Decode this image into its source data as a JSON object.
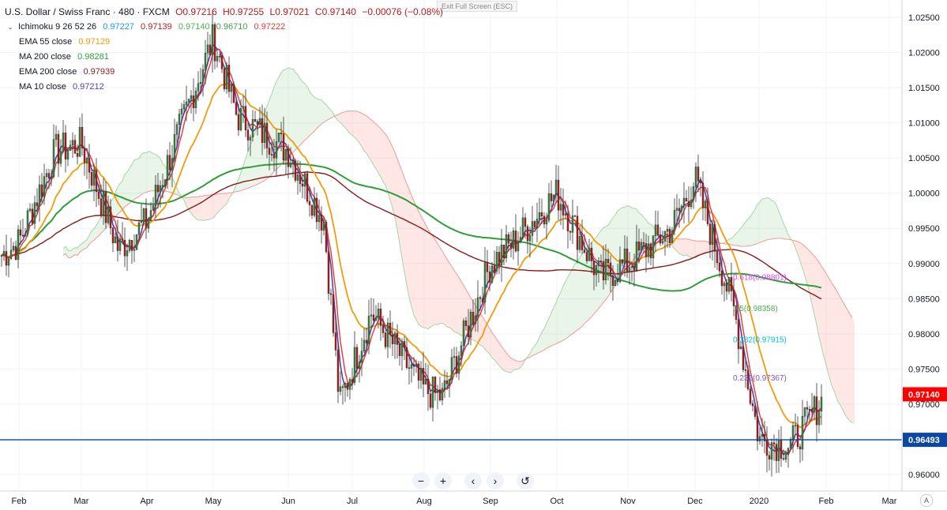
{
  "exit_fullscreen": "Exit Full Screen (ESC)",
  "legend": {
    "title": "U.S. Dollar / Swiss Franc · 480 · FXCM",
    "open": "O0.97216",
    "high": "H0.97255",
    "low": "L0.97021",
    "close": "C0.97140",
    "change": "−0.00076 (−0.08%)",
    "ichimoku": {
      "label": "Ichimoku 9 26 52 26",
      "values": [
        "0.97227",
        "0.97139",
        "0.97140",
        "0.96710",
        "0.97222"
      ],
      "colors": [
        "#2196f3",
        "#b71c1c",
        "#4caf50",
        "#43a047",
        "#e53935"
      ]
    },
    "ema55": {
      "label": "EMA 55 close",
      "value": "0.97129",
      "color": "#f59a0b"
    },
    "ma200": {
      "label": "MA 200 close",
      "value": "0.98281",
      "color": "#2e9e3a"
    },
    "ema200": {
      "label": "EMA 200 close",
      "value": "0.97939",
      "color": "#8b1a1a"
    },
    "ma10": {
      "label": "MA 10 close",
      "value": "0.97212",
      "color": "#5b3fa8"
    }
  },
  "price_axis": {
    "labels": [
      "1.02500",
      "1.02000",
      "1.01500",
      "1.01000",
      "1.00500",
      "1.00000",
      "0.99500",
      "0.99000",
      "0.98500",
      "0.98000",
      "0.97500",
      "0.97000",
      "0.96500",
      "0.96000"
    ],
    "current_price": "0.97140",
    "current_color": "#ff0000",
    "hline_price": "0.96493",
    "hline_color": "#0d47a1"
  },
  "time_axis": {
    "labels": [
      "Feb",
      "Mar",
      "Apr",
      "May",
      "Jun",
      "Jul",
      "Aug",
      "Sep",
      "Oct",
      "Nov",
      "Dec",
      "2020",
      "Feb",
      "Mar"
    ]
  },
  "fib": [
    {
      "label": "0.618(0.98801)",
      "price": 0.98801,
      "color": "#e040fb"
    },
    {
      "label": "0.5(0.98358)",
      "price": 0.98358,
      "color": "#4caf50"
    },
    {
      "label": "0.382(0.97915)",
      "price": 0.97915,
      "color": "#00bcd4"
    },
    {
      "label": "0.236(0.97367)",
      "price": 0.97367,
      "color": "#7e57c2"
    }
  ],
  "nav": {
    "zoom_out": "−",
    "zoom_in": "+",
    "prev": "‹",
    "next": "›",
    "reset": "↺"
  },
  "auto_label": "A",
  "chart_data": {
    "type": "candlestick",
    "symbol": "U.S. Dollar / Swiss Franc",
    "interval": "480",
    "source": "FXCM",
    "x": [
      "Feb",
      "Mar",
      "Apr",
      "May",
      "Jun",
      "Jul",
      "Aug",
      "Sep",
      "Oct",
      "Nov",
      "Dec",
      "2020",
      "Feb"
    ],
    "ylim": [
      0.958,
      1.0265
    ],
    "series": [
      {
        "name": "close",
        "values": [
          0.993,
          1.007,
          0.996,
          1.022,
          1.006,
          0.981,
          0.982,
          0.992,
          0.999,
          0.99,
          1.0,
          0.965,
          0.9714
        ]
      },
      {
        "name": "EMA 55 close",
        "values": [
          0.992,
          1.0,
          0.999,
          1.014,
          1.006,
          0.988,
          0.986,
          0.986,
          0.996,
          0.991,
          0.993,
          0.974,
          0.9713
        ]
      },
      {
        "name": "MA 200 close",
        "values": [
          0.994,
          0.995,
          0.9985,
          1.004,
          1.006,
          1.003,
          0.998,
          0.988,
          0.986,
          0.988,
          0.992,
          0.987,
          0.9828
        ]
      },
      {
        "name": "EMA 200 close",
        "values": [
          0.991,
          0.9965,
          0.9985,
          1.005,
          1.007,
          1.0,
          0.994,
          0.99,
          0.99,
          0.991,
          0.992,
          0.985,
          0.9794
        ]
      },
      {
        "name": "MA 10 close",
        "values": [
          0.9935,
          1.008,
          0.996,
          1.02,
          1.006,
          0.98,
          0.98,
          0.992,
          0.999,
          0.99,
          0.999,
          0.966,
          0.9721
        ]
      }
    ],
    "hline": 0.96493,
    "last_price": 0.9714,
    "grid": true
  }
}
